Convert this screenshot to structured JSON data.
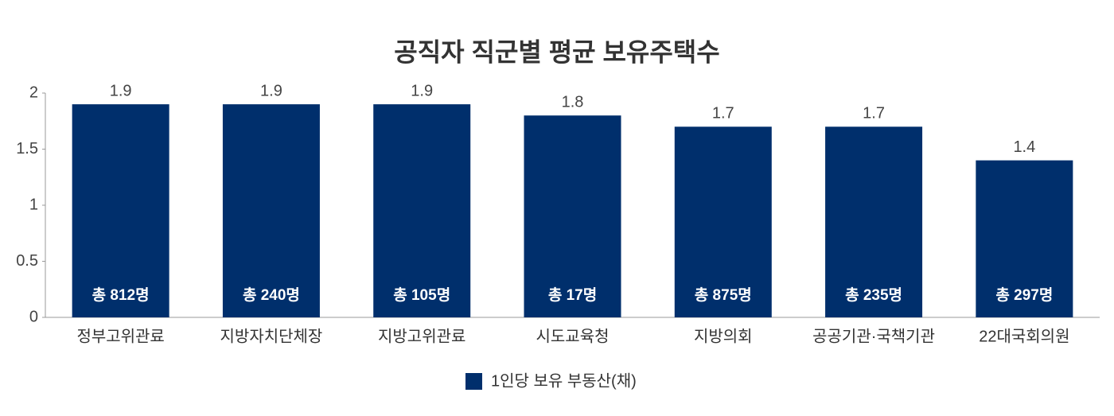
{
  "chart_data": {
    "type": "bar",
    "title": "공직자 직군별 평균 보유주택수",
    "categories": [
      "정부고위관료",
      "지방자치단체장",
      "지방고위관료",
      "시도교육청",
      "지방의회",
      "공공기관·국책기관",
      "22대국회의원"
    ],
    "series": [
      {
        "name": "1인당 보유 부동산(채)",
        "color": "#002f6c",
        "values": [
          1.9,
          1.9,
          1.9,
          1.8,
          1.7,
          1.7,
          1.4
        ]
      }
    ],
    "bar_labels": [
      "총 812명",
      "총 240명",
      "총 105명",
      "총 17명",
      "총 875명",
      "총 235명",
      "총 297명"
    ],
    "ylim": [
      0,
      2
    ],
    "yticks": [
      0,
      0.5,
      1,
      1.5,
      2
    ],
    "grid": false,
    "legend": "bottom"
  }
}
